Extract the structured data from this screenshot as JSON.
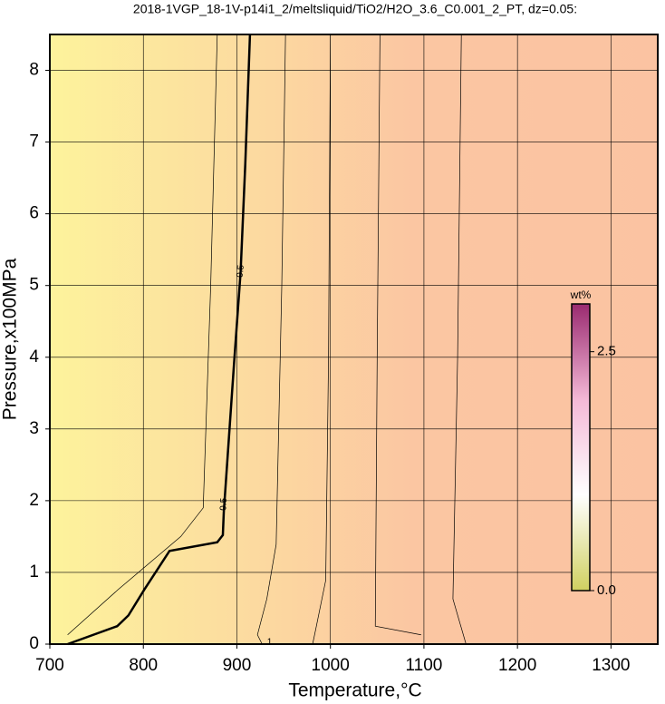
{
  "chart_data": {
    "type": "contour",
    "title": "2018-1VGP_18-1V-p14i1_2/meltsliquid/TiO2/H2O_3.6_C0.001_2_PT, dz=0.05:",
    "xlabel": "Temperature,°C",
    "ylabel": "Pressure,x100MPa",
    "xlim": [
      700,
      1350
    ],
    "ylim": [
      0,
      8.5
    ],
    "xticks": [
      700,
      800,
      900,
      1000,
      1100,
      1200,
      1300
    ],
    "yticks": [
      0,
      1,
      2,
      3,
      4,
      5,
      6,
      7,
      8
    ],
    "grid": true,
    "background_colors": [
      "#fdf39c",
      "#fcd9a0",
      "#fbc6a2",
      "#fbc3a2"
    ],
    "contours": [
      {
        "linewidth": 2.5,
        "x": [
          719,
          772,
          784,
          801,
          828,
          879,
          885,
          886,
          897,
          904,
          909,
          914
        ],
        "y": [
          0,
          0.25,
          0.4,
          0.76,
          1.3,
          1.42,
          1.52,
          1.84,
          3.92,
          5.19,
          6.7,
          8.5
        ]
      },
      {
        "linewidth": 0.7,
        "x": [
          719,
          773,
          840,
          864,
          872,
          879
        ],
        "y": [
          0.13,
          0.76,
          1.5,
          1.9,
          5,
          8.5
        ]
      },
      {
        "linewidth": 0.7,
        "x": [
          927,
          922,
          932,
          942,
          948,
          952
        ],
        "y": [
          0,
          0.13,
          0.63,
          1.39,
          5,
          8.5
        ]
      },
      {
        "linewidth": 0.7,
        "x": [
          981,
          985,
          995,
          998,
          1000
        ],
        "y": [
          0,
          0.25,
          0.89,
          4,
          8.5
        ]
      },
      {
        "linewidth": 0.7,
        "x": [
          1097,
          1048,
          1050,
          1053
        ],
        "y": [
          0.13,
          0.25,
          4,
          8.5
        ]
      },
      {
        "linewidth": 0.7,
        "x": [
          1145,
          1131,
          1136,
          1140
        ],
        "y": [
          0,
          0.63,
          4,
          8.5
        ]
      }
    ],
    "contour_labels": [
      {
        "text": "0.5",
        "x": 904,
        "y": 5.2
      },
      {
        "text": "0.5",
        "x": 886,
        "y": 1.95
      },
      {
        "text": "1",
        "x": 935,
        "y": 0.03
      }
    ],
    "colorbar": {
      "label": "wt%",
      "clim": [
        0,
        3
      ],
      "colors": [
        "#d0d060",
        "#ffffff",
        "#f3b8d6",
        "#9a2a70"
      ],
      "ticks": [
        {
          "value": 0,
          "label": "0.0"
        },
        {
          "value": 2.5,
          "label": "2.5"
        }
      ]
    }
  }
}
